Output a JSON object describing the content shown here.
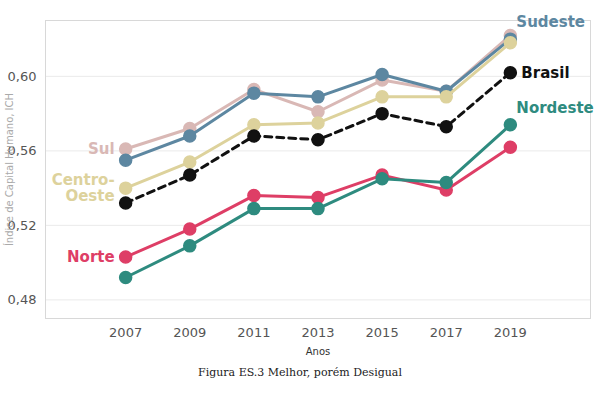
{
  "chart_data": {
    "type": "line",
    "caption": "Figura ES.3 Melhor, porém Desigual",
    "x_label": "Anos",
    "y_label": "Índice de Capital Humano, ICH",
    "x": [
      2007,
      2009,
      2011,
      2013,
      2015,
      2017,
      2019
    ],
    "xlim": [
      2004.5,
      2021.5
    ],
    "xticks": [
      2007,
      2009,
      2011,
      2013,
      2015,
      2017,
      2019
    ],
    "ylim": [
      0.47,
      0.63
    ],
    "yticks": [
      {
        "value": 0.48,
        "label": "0,48"
      },
      {
        "value": 0.52,
        "label": "0,52"
      },
      {
        "value": 0.56,
        "label": "0,56"
      },
      {
        "value": 0.6,
        "label": "0,60"
      }
    ],
    "grid": true,
    "marker": "circle",
    "series": [
      {
        "name": "Sul",
        "color": "#d9b8b5",
        "line_style": "solid",
        "values": [
          0.561,
          0.572,
          0.593,
          0.581,
          0.598,
          0.592,
          0.622
        ]
      },
      {
        "name": "Sudeste",
        "color": "#5d87a1",
        "line_style": "solid",
        "values": [
          0.555,
          0.568,
          0.591,
          0.589,
          0.601,
          0.592,
          0.62
        ]
      },
      {
        "name": "Centro-Oeste",
        "color": "#ddd29c",
        "line_style": "solid",
        "values": [
          0.54,
          0.554,
          0.574,
          0.575,
          0.589,
          0.589,
          0.618
        ]
      },
      {
        "name": "Brasil",
        "color": "#111111",
        "line_style": "dashed",
        "values": [
          0.532,
          0.547,
          0.568,
          0.566,
          0.58,
          0.573,
          0.602
        ]
      },
      {
        "name": "Norte",
        "color": "#de3e66",
        "line_style": "solid",
        "values": [
          0.503,
          0.518,
          0.536,
          0.535,
          0.547,
          0.539,
          0.562
        ]
      },
      {
        "name": "Nordeste",
        "color": "#2e8b7f",
        "line_style": "solid",
        "values": [
          0.492,
          0.509,
          0.529,
          0.529,
          0.545,
          0.543,
          0.574
        ]
      }
    ]
  }
}
